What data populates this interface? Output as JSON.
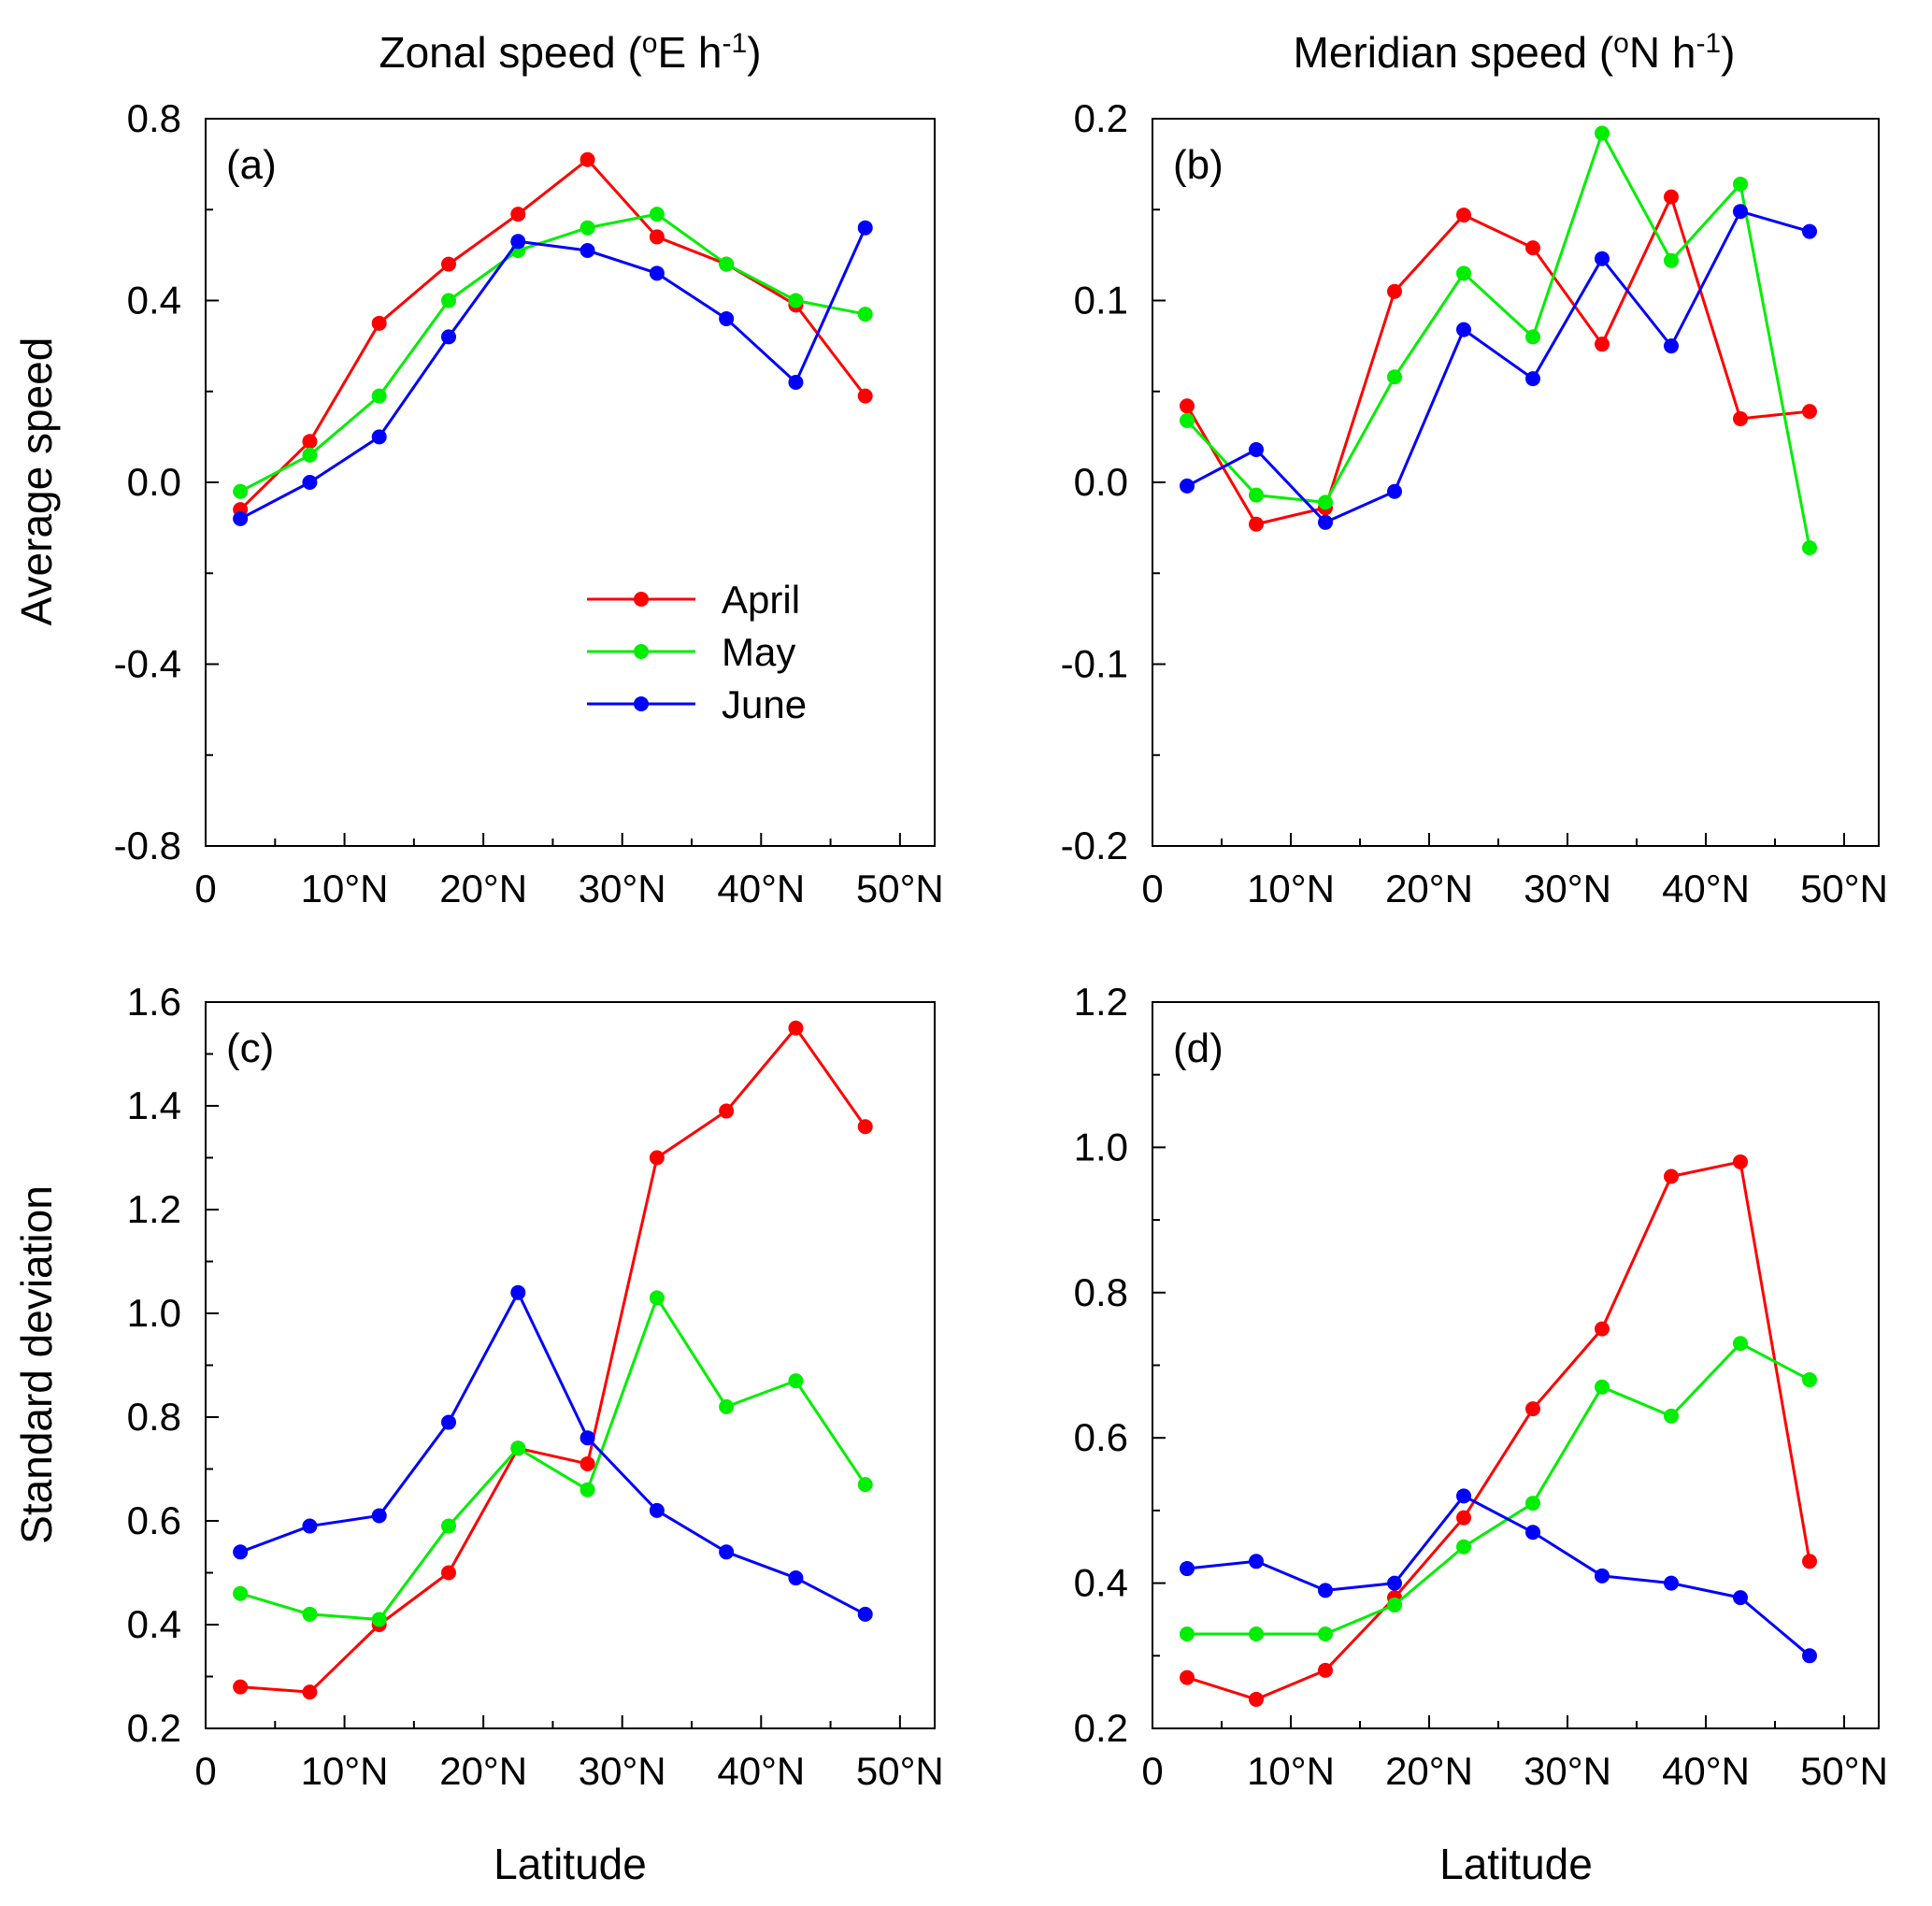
{
  "figure": {
    "column_titles": {
      "left": {
        "main": "Zonal speed (",
        "sup1": "o",
        "mid": "E h",
        "sup2": "-1",
        "end": ")"
      },
      "right": {
        "main": "Meridian speed (",
        "sup1": "o",
        "mid": "N h",
        "sup2": "-1",
        "end": ")"
      }
    },
    "row_titles": {
      "top": "Average speed",
      "bottom": "Standard deviation"
    },
    "x_title": "Latitude",
    "x_tick_labels": [
      "0",
      "10°N",
      "20°N",
      "30°N",
      "40°N",
      "50°N"
    ],
    "legend": [
      {
        "name": "April",
        "color": "#ff0000"
      },
      {
        "name": "May",
        "color": "#00ee00"
      },
      {
        "name": "June",
        "color": "#0000ff"
      }
    ]
  },
  "chart_data": [
    {
      "type": "line",
      "panel": "(a)",
      "ylabel": "Average speed",
      "xlabel": "",
      "xlim": [
        0,
        52.5
      ],
      "ylim": [
        -0.8,
        0.8
      ],
      "yticks": [
        -0.8,
        -0.4,
        0.0,
        0.4,
        0.8
      ],
      "ytick_labels": [
        "-0.8",
        "-0.4",
        "0.0",
        "0.4",
        "0.8"
      ],
      "x": [
        2.5,
        7.5,
        12.5,
        17.5,
        22.5,
        27.5,
        32.5,
        37.5,
        42.5,
        47.5
      ],
      "series": [
        {
          "name": "April",
          "color": "#ff0000",
          "values": [
            -0.06,
            0.09,
            0.35,
            0.48,
            0.59,
            0.71,
            0.54,
            0.48,
            0.39,
            0.19
          ]
        },
        {
          "name": "May",
          "color": "#00ee00",
          "values": [
            -0.02,
            0.06,
            0.19,
            0.4,
            0.51,
            0.56,
            0.59,
            0.48,
            0.4,
            0.37
          ]
        },
        {
          "name": "June",
          "color": "#0000ff",
          "values": [
            -0.08,
            0.0,
            0.1,
            0.32,
            0.53,
            0.51,
            0.46,
            0.36,
            0.22,
            0.56
          ]
        }
      ]
    },
    {
      "type": "line",
      "panel": "(b)",
      "ylabel": "",
      "xlabel": "",
      "xlim": [
        0,
        52.5
      ],
      "ylim": [
        -0.2,
        0.2
      ],
      "yticks": [
        -0.2,
        -0.1,
        0.0,
        0.1,
        0.2
      ],
      "ytick_labels": [
        "-0.2",
        "-0.1",
        "0.0",
        "0.1",
        "0.2"
      ],
      "x": [
        2.5,
        7.5,
        12.5,
        17.5,
        22.5,
        27.5,
        32.5,
        37.5,
        42.5,
        47.5
      ],
      "series": [
        {
          "name": "April",
          "color": "#ff0000",
          "values": [
            0.042,
            -0.023,
            -0.014,
            0.105,
            0.147,
            0.129,
            0.076,
            0.157,
            0.035,
            0.039
          ]
        },
        {
          "name": "May",
          "color": "#00ee00",
          "values": [
            0.034,
            -0.007,
            -0.011,
            0.058,
            0.115,
            0.08,
            0.192,
            0.122,
            0.164,
            -0.036
          ]
        },
        {
          "name": "June",
          "color": "#0000ff",
          "values": [
            -0.002,
            0.018,
            -0.022,
            -0.005,
            0.084,
            0.057,
            0.123,
            0.075,
            0.149,
            0.138
          ]
        }
      ]
    },
    {
      "type": "line",
      "panel": "(c)",
      "ylabel": "Standard deviation",
      "xlabel": "Latitude",
      "xlim": [
        0,
        52.5
      ],
      "ylim": [
        0.2,
        1.6
      ],
      "yticks": [
        0.2,
        0.4,
        0.6,
        0.8,
        1.0,
        1.2,
        1.4,
        1.6
      ],
      "ytick_labels": [
        "0.2",
        "0.4",
        "0.6",
        "0.8",
        "1.0",
        "1.2",
        "1.4",
        "1.6"
      ],
      "x": [
        2.5,
        7.5,
        12.5,
        17.5,
        22.5,
        27.5,
        32.5,
        37.5,
        42.5,
        47.5
      ],
      "series": [
        {
          "name": "April",
          "color": "#ff0000",
          "values": [
            0.28,
            0.27,
            0.4,
            0.5,
            0.74,
            0.71,
            1.3,
            1.39,
            1.55,
            1.36
          ]
        },
        {
          "name": "May",
          "color": "#00ee00",
          "values": [
            0.46,
            0.42,
            0.41,
            0.59,
            0.74,
            0.66,
            1.03,
            0.82,
            0.87,
            0.67
          ]
        },
        {
          "name": "June",
          "color": "#0000ff",
          "values": [
            0.54,
            0.59,
            0.61,
            0.79,
            1.04,
            0.76,
            0.62,
            0.54,
            0.49,
            0.42
          ]
        }
      ]
    },
    {
      "type": "line",
      "panel": "(d)",
      "ylabel": "",
      "xlabel": "Latitude",
      "xlim": [
        0,
        52.5
      ],
      "ylim": [
        0.2,
        1.2
      ],
      "yticks": [
        0.2,
        0.4,
        0.6,
        0.8,
        1.0,
        1.2
      ],
      "ytick_labels": [
        "0.2",
        "0.4",
        "0.6",
        "0.8",
        "1.0",
        "1.2"
      ],
      "x": [
        2.5,
        7.5,
        12.5,
        17.5,
        22.5,
        27.5,
        32.5,
        37.5,
        42.5,
        47.5
      ],
      "series": [
        {
          "name": "April",
          "color": "#ff0000",
          "values": [
            0.27,
            0.24,
            0.28,
            0.38,
            0.49,
            0.64,
            0.75,
            0.96,
            0.98,
            0.43
          ]
        },
        {
          "name": "May",
          "color": "#00ee00",
          "values": [
            0.33,
            0.33,
            0.33,
            0.37,
            0.45,
            0.51,
            0.67,
            0.63,
            0.73,
            0.68
          ]
        },
        {
          "name": "June",
          "color": "#0000ff",
          "values": [
            0.42,
            0.43,
            0.39,
            0.4,
            0.52,
            0.47,
            0.41,
            0.4,
            0.38,
            0.3
          ]
        }
      ]
    }
  ]
}
